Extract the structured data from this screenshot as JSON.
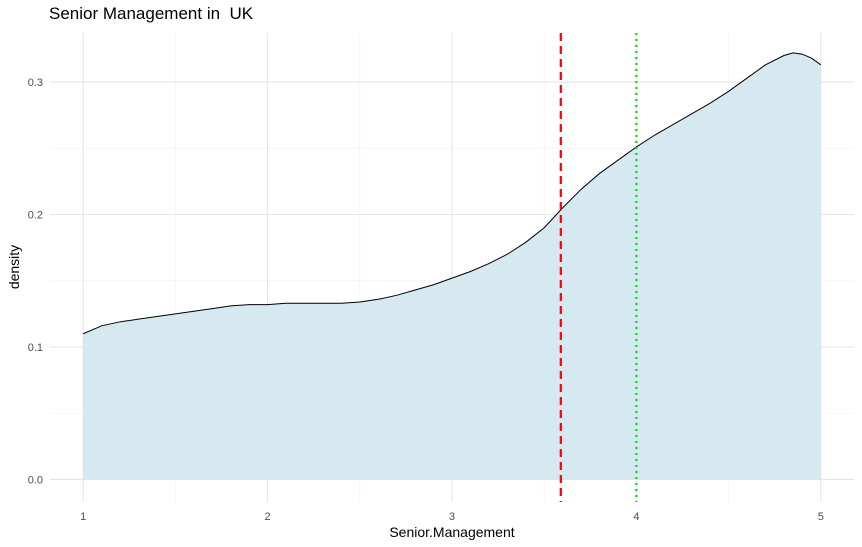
{
  "chart_data": {
    "type": "area",
    "title": "Senior Management in  UK",
    "xlabel": "Senior.Management",
    "ylabel": "density",
    "xlim": [
      0.82,
      5.18
    ],
    "ylim": [
      -0.017,
      0.337
    ],
    "x_ticks": [
      1,
      2,
      3,
      4,
      5
    ],
    "y_ticks": [
      0.0,
      0.1,
      0.2,
      0.3
    ],
    "x_tick_labels": [
      "1",
      "2",
      "3",
      "4",
      "5"
    ],
    "y_tick_labels": [
      "0.0",
      "0.1",
      "0.2",
      "0.3"
    ],
    "grid": true,
    "fill_color": "#d6e9f1",
    "line_color": "#000000",
    "series": [
      {
        "x": [
          1.0,
          1.1,
          1.2,
          1.3,
          1.4,
          1.5,
          1.6,
          1.7,
          1.8,
          1.9,
          2.0,
          2.1,
          2.2,
          2.3,
          2.4,
          2.5,
          2.6,
          2.7,
          2.8,
          2.9,
          3.0,
          3.1,
          3.2,
          3.3,
          3.4,
          3.5,
          3.6,
          3.7,
          3.8,
          3.9,
          4.0,
          4.1,
          4.2,
          4.3,
          4.4,
          4.5,
          4.6,
          4.7,
          4.8,
          4.85,
          4.9,
          4.95,
          5.0
        ],
        "y": [
          0.11,
          0.116,
          0.119,
          0.121,
          0.123,
          0.125,
          0.127,
          0.129,
          0.131,
          0.132,
          0.132,
          0.133,
          0.133,
          0.133,
          0.133,
          0.134,
          0.136,
          0.139,
          0.143,
          0.147,
          0.152,
          0.157,
          0.163,
          0.17,
          0.179,
          0.19,
          0.205,
          0.219,
          0.231,
          0.241,
          0.251,
          0.26,
          0.268,
          0.276,
          0.284,
          0.293,
          0.303,
          0.313,
          0.32,
          0.322,
          0.321,
          0.318,
          0.313
        ]
      }
    ],
    "vlines": [
      {
        "x": 3.59,
        "color": "#ff0000",
        "style": "dashed"
      },
      {
        "x": 4.0,
        "color": "#00e000",
        "style": "dotted"
      }
    ]
  }
}
